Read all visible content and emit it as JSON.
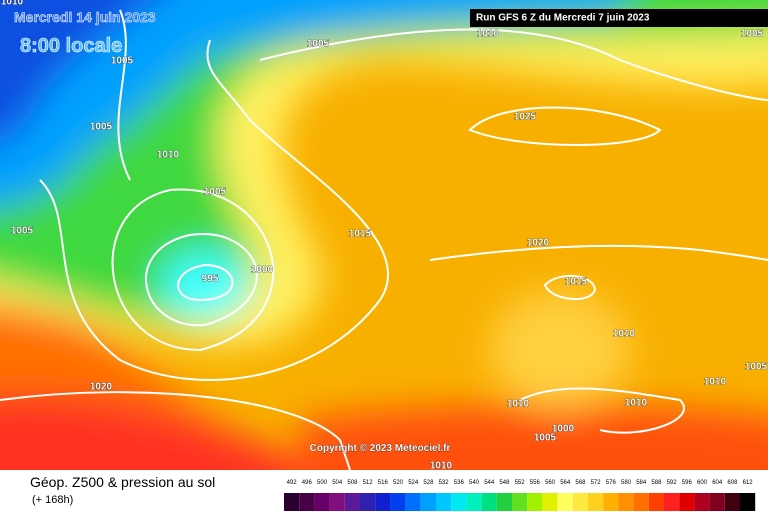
{
  "header": {
    "date": "Mercredi 14 juin 2023",
    "time": "8:00 locale",
    "run": "Run GFS 6 Z du Mercredi 7 juin 2023"
  },
  "copyright": "Copyright © 2023 Meteociel.fr",
  "footer": {
    "title": "Géop. Z500 & pression au sol",
    "lead": "(+ 168h)"
  },
  "isobars": [
    "1010",
    "1005",
    "1010",
    "1005",
    "1005",
    "1005",
    "1010",
    "1025",
    "1005",
    "1005",
    "1015",
    "1020",
    "995",
    "1000",
    "1015",
    "1010",
    "1010",
    "1005",
    "1020",
    "1010",
    "1010",
    "1000",
    "1005",
    "1010"
  ],
  "scale": [
    {
      "label": "492",
      "color": "#2a0030"
    },
    {
      "label": "496",
      "color": "#480048"
    },
    {
      "label": "500",
      "color": "#660066"
    },
    {
      "label": "504",
      "color": "#80107f"
    },
    {
      "label": "508",
      "color": "#5a1a9a"
    },
    {
      "label": "512",
      "color": "#3020b0"
    },
    {
      "label": "516",
      "color": "#1020d0"
    },
    {
      "label": "520",
      "color": "#0040f0"
    },
    {
      "label": "524",
      "color": "#0070ff"
    },
    {
      "label": "528",
      "color": "#00a0ff"
    },
    {
      "label": "532",
      "color": "#00c8ff"
    },
    {
      "label": "536",
      "color": "#00e8f0"
    },
    {
      "label": "540",
      "color": "#00f0c0"
    },
    {
      "label": "544",
      "color": "#00e080"
    },
    {
      "label": "548",
      "color": "#20d040"
    },
    {
      "label": "552",
      "color": "#60e020"
    },
    {
      "label": "556",
      "color": "#a0f000"
    },
    {
      "label": "560",
      "color": "#e0f000"
    },
    {
      "label": "564",
      "color": "#ffff60"
    },
    {
      "label": "568",
      "color": "#ffe840"
    },
    {
      "label": "572",
      "color": "#ffd020"
    },
    {
      "label": "576",
      "color": "#ffb000"
    },
    {
      "label": "580",
      "color": "#ff9000"
    },
    {
      "label": "584",
      "color": "#ff7000"
    },
    {
      "label": "588",
      "color": "#ff4000"
    },
    {
      "label": "592",
      "color": "#ff2020"
    },
    {
      "label": "596",
      "color": "#e00000"
    },
    {
      "label": "600",
      "color": "#b00020"
    },
    {
      "label": "604",
      "color": "#800020"
    },
    {
      "label": "608",
      "color": "#400010"
    },
    {
      "label": "612",
      "color": "#000000"
    }
  ]
}
